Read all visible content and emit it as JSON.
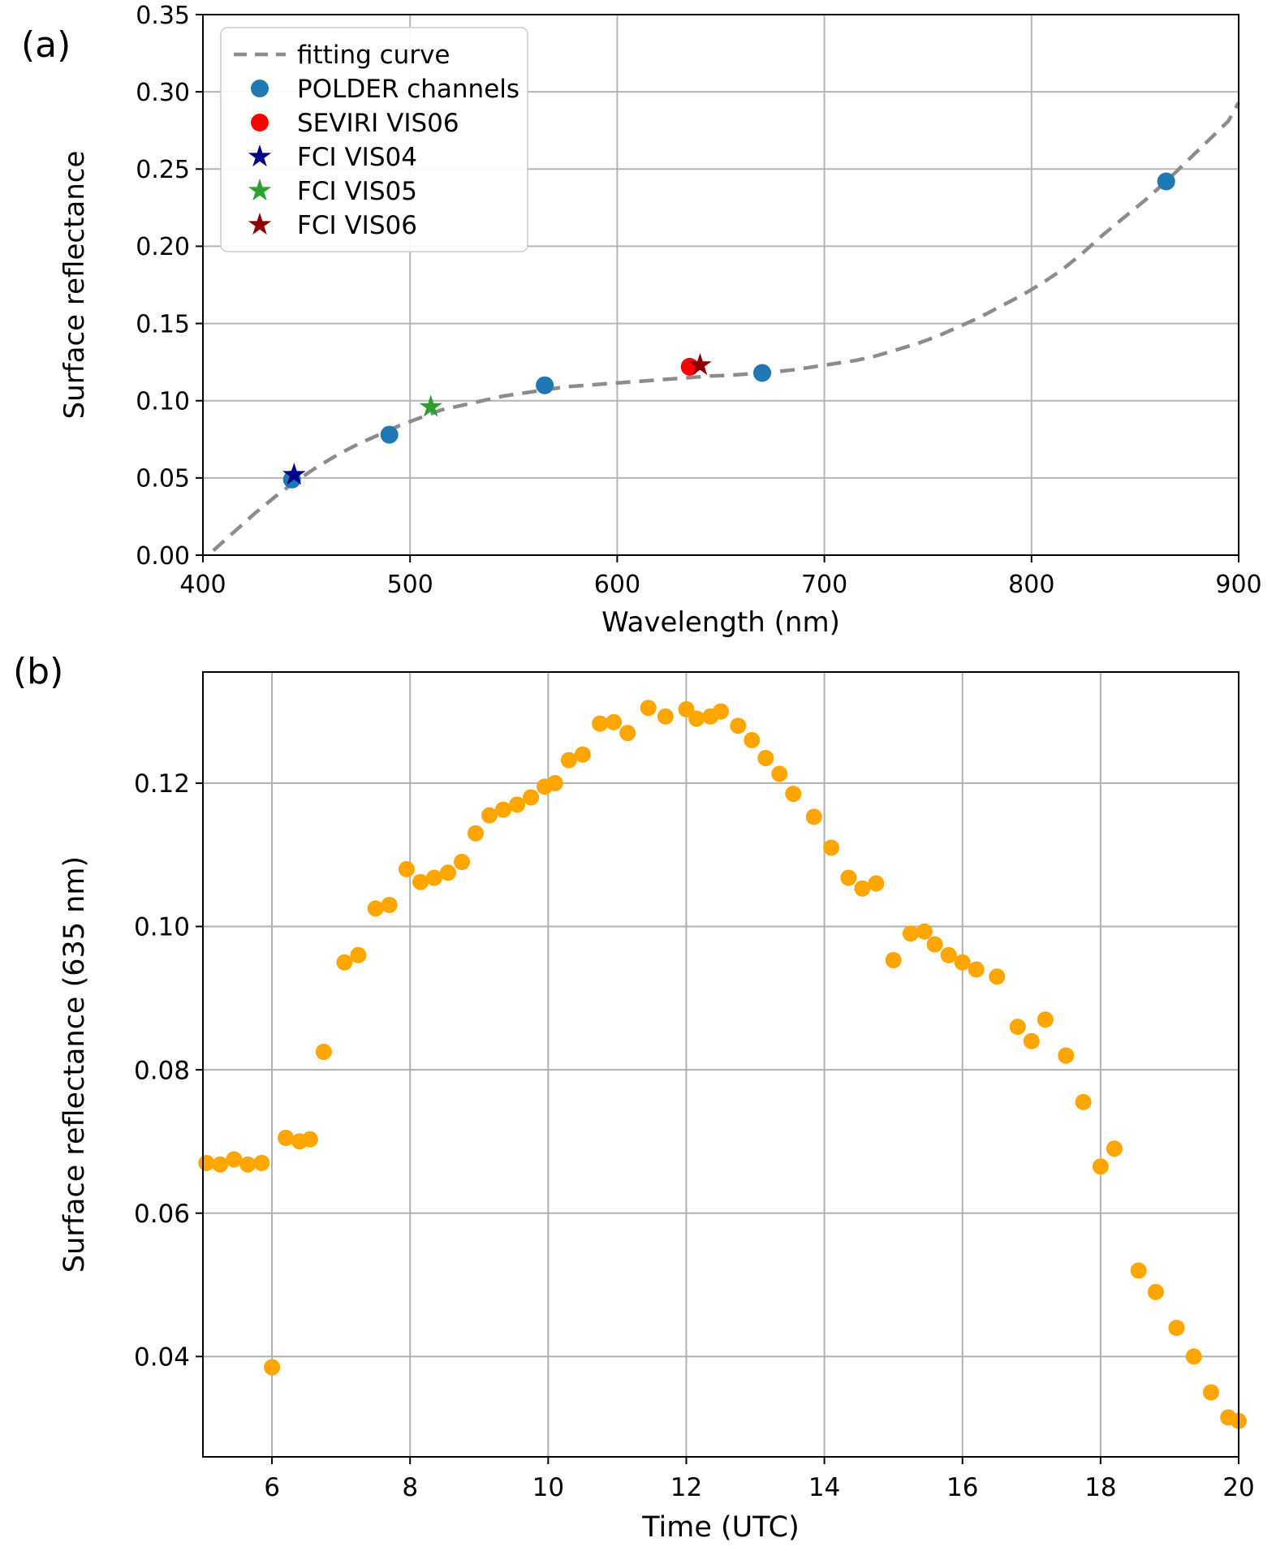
{
  "figure": {
    "background": "#ffffff",
    "panels": [
      {
        "label": "(a)"
      },
      {
        "label": "(b)"
      }
    ]
  },
  "chart_data": [
    {
      "id": "a",
      "type": "scatter",
      "title": "",
      "xlabel": "Wavelength (nm)",
      "ylabel": "Surface reflectance",
      "xlim": [
        400,
        900
      ],
      "ylim": [
        0.0,
        0.35
      ],
      "xticks": [
        400,
        500,
        600,
        700,
        800,
        900
      ],
      "xticklabels": [
        "400",
        "500",
        "600",
        "700",
        "800",
        "900"
      ],
      "yticks": [
        0.0,
        0.05,
        0.1,
        0.15,
        0.2,
        0.25,
        0.3,
        0.35
      ],
      "yticklabels": [
        "0.00",
        "0.05",
        "0.10",
        "0.15",
        "0.20",
        "0.25",
        "0.30",
        "0.35"
      ],
      "grid": true,
      "legend_location": "upper left",
      "fitting_curve": {
        "label": "fitting curve",
        "color": "#8c8c8c",
        "style": "dashed",
        "points": [
          [
            405,
            0.003
          ],
          [
            415,
            0.015
          ],
          [
            425,
            0.027
          ],
          [
            435,
            0.038
          ],
          [
            445,
            0.048
          ],
          [
            455,
            0.057
          ],
          [
            465,
            0.065
          ],
          [
            475,
            0.072
          ],
          [
            485,
            0.078
          ],
          [
            495,
            0.084
          ],
          [
            505,
            0.089
          ],
          [
            515,
            0.094
          ],
          [
            525,
            0.097
          ],
          [
            535,
            0.1
          ],
          [
            545,
            0.103
          ],
          [
            555,
            0.105
          ],
          [
            565,
            0.107
          ],
          [
            575,
            0.109
          ],
          [
            585,
            0.11
          ],
          [
            595,
            0.111
          ],
          [
            605,
            0.112
          ],
          [
            615,
            0.113
          ],
          [
            625,
            0.114
          ],
          [
            635,
            0.115
          ],
          [
            645,
            0.116
          ],
          [
            655,
            0.1165
          ],
          [
            665,
            0.1175
          ],
          [
            675,
            0.1185
          ],
          [
            685,
            0.12
          ],
          [
            695,
            0.122
          ],
          [
            705,
            0.124
          ],
          [
            715,
            0.126
          ],
          [
            725,
            0.129
          ],
          [
            735,
            0.133
          ],
          [
            745,
            0.137
          ],
          [
            755,
            0.142
          ],
          [
            765,
            0.148
          ],
          [
            775,
            0.154
          ],
          [
            785,
            0.161
          ],
          [
            795,
            0.168
          ],
          [
            805,
            0.176
          ],
          [
            815,
            0.185
          ],
          [
            825,
            0.196
          ],
          [
            835,
            0.208
          ],
          [
            845,
            0.219
          ],
          [
            855,
            0.23
          ],
          [
            865,
            0.242
          ],
          [
            875,
            0.255
          ],
          [
            885,
            0.268
          ],
          [
            895,
            0.281
          ],
          [
            900,
            0.293
          ]
        ]
      },
      "series": [
        {
          "name": "POLDER channels",
          "marker": "circle",
          "color": "#1f77b4",
          "points": [
            [
              443,
              0.049
            ],
            [
              490,
              0.078
            ],
            [
              565,
              0.11
            ],
            [
              670,
              0.118
            ],
            [
              865,
              0.242
            ]
          ]
        },
        {
          "name": "SEVIRI VIS06",
          "marker": "circle",
          "color": "#ff0000",
          "points": [
            [
              635,
              0.122
            ]
          ]
        },
        {
          "name": "FCI VIS04",
          "marker": "star",
          "color": "#00008b",
          "points": [
            [
              444,
              0.052
            ]
          ]
        },
        {
          "name": "FCI VIS05",
          "marker": "star",
          "color": "#2ca02c",
          "points": [
            [
              510,
              0.096
            ]
          ]
        },
        {
          "name": "FCI VIS06",
          "marker": "star",
          "color": "#8b0000",
          "points": [
            [
              640,
              0.123
            ]
          ]
        }
      ]
    },
    {
      "id": "b",
      "type": "scatter",
      "title": "",
      "xlabel": "Time (UTC)",
      "ylabel": "Surface reflectance (635 nm)",
      "xlim": [
        5.0,
        20.0
      ],
      "ylim": [
        0.026,
        0.1355
      ],
      "xticks": [
        6,
        8,
        10,
        12,
        14,
        16,
        18,
        20
      ],
      "xticklabels": [
        "6",
        "8",
        "10",
        "12",
        "14",
        "16",
        "18",
        "20"
      ],
      "yticks": [
        0.04,
        0.06,
        0.08,
        0.1,
        0.12
      ],
      "yticklabels": [
        "0.04",
        "0.06",
        "0.08",
        "0.10",
        "0.12"
      ],
      "grid": true,
      "series": [
        {
          "name": "surface reflectance (635 nm)",
          "marker": "circle",
          "color": "#ffa500",
          "points": [
            [
              5.05,
              0.067
            ],
            [
              5.25,
              0.0668
            ],
            [
              5.45,
              0.0675
            ],
            [
              5.65,
              0.0668
            ],
            [
              5.85,
              0.067
            ],
            [
              6.0,
              0.0385
            ],
            [
              6.2,
              0.0705
            ],
            [
              6.4,
              0.07
            ],
            [
              6.55,
              0.0703
            ],
            [
              6.75,
              0.0825
            ],
            [
              7.05,
              0.095
            ],
            [
              7.25,
              0.096
            ],
            [
              7.5,
              0.1025
            ],
            [
              7.7,
              0.103
            ],
            [
              7.95,
              0.108
            ],
            [
              8.15,
              0.1062
            ],
            [
              8.35,
              0.1068
            ],
            [
              8.55,
              0.1075
            ],
            [
              8.75,
              0.109
            ],
            [
              8.95,
              0.113
            ],
            [
              9.15,
              0.1155
            ],
            [
              9.35,
              0.1163
            ],
            [
              9.55,
              0.117
            ],
            [
              9.75,
              0.118
            ],
            [
              9.95,
              0.1195
            ],
            [
              10.1,
              0.12
            ],
            [
              10.3,
              0.1232
            ],
            [
              10.5,
              0.124
            ],
            [
              10.75,
              0.1283
            ],
            [
              10.95,
              0.1285
            ],
            [
              11.15,
              0.127
            ],
            [
              11.45,
              0.1305
            ],
            [
              11.7,
              0.1293
            ],
            [
              12.0,
              0.1303
            ],
            [
              12.15,
              0.129
            ],
            [
              12.35,
              0.1293
            ],
            [
              12.5,
              0.13
            ],
            [
              12.75,
              0.128
            ],
            [
              12.95,
              0.126
            ],
            [
              13.15,
              0.1235
            ],
            [
              13.35,
              0.1213
            ],
            [
              13.55,
              0.1185
            ],
            [
              13.85,
              0.1153
            ],
            [
              14.1,
              0.111
            ],
            [
              14.35,
              0.1068
            ],
            [
              14.55,
              0.1053
            ],
            [
              14.75,
              0.106
            ],
            [
              15.0,
              0.0953
            ],
            [
              15.25,
              0.099
            ],
            [
              15.45,
              0.0993
            ],
            [
              15.6,
              0.0975
            ],
            [
              15.8,
              0.096
            ],
            [
              16.0,
              0.095
            ],
            [
              16.2,
              0.094
            ],
            [
              16.5,
              0.093
            ],
            [
              16.8,
              0.086
            ],
            [
              17.0,
              0.084
            ],
            [
              17.2,
              0.087
            ],
            [
              17.5,
              0.082
            ],
            [
              17.75,
              0.0755
            ],
            [
              18.0,
              0.0665
            ],
            [
              18.2,
              0.069
            ],
            [
              18.55,
              0.052
            ],
            [
              18.8,
              0.049
            ],
            [
              19.1,
              0.044
            ],
            [
              19.35,
              0.04
            ],
            [
              19.6,
              0.035
            ],
            [
              19.85,
              0.0315
            ],
            [
              20.0,
              0.031
            ]
          ]
        }
      ]
    }
  ]
}
